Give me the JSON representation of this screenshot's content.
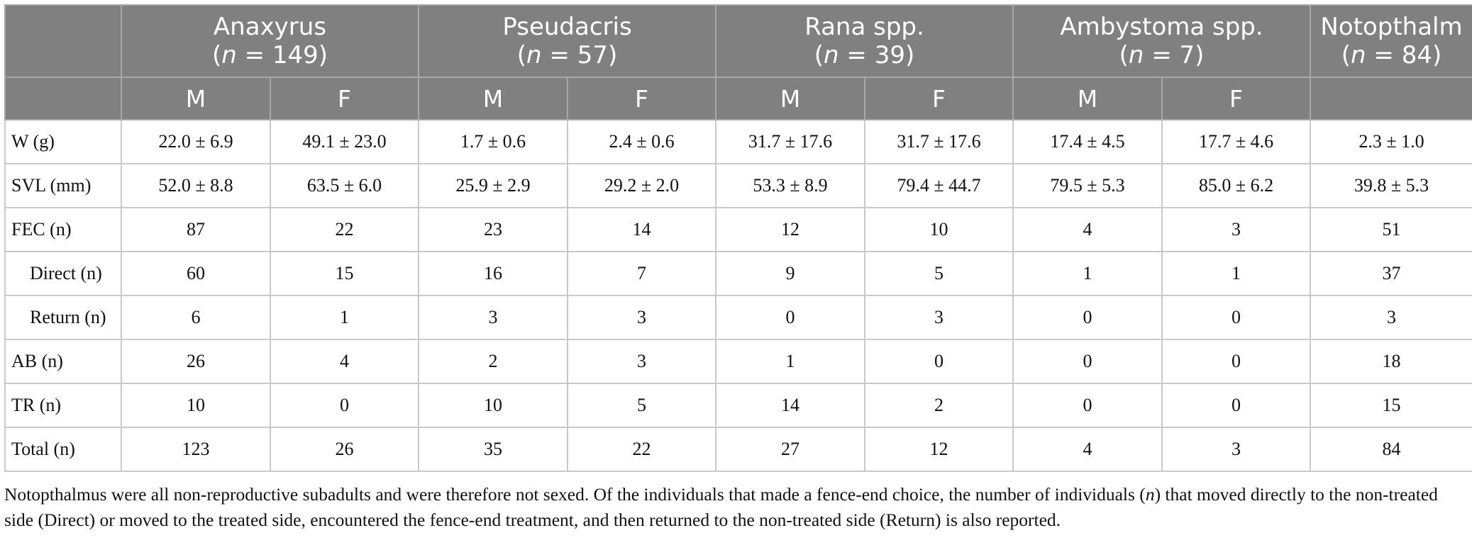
{
  "table": {
    "groups": [
      {
        "name": "Anaxyrus",
        "n_label": "n",
        "n_value": " = 149"
      },
      {
        "name": "Pseudacris",
        "n_label": "n",
        "n_value": " = 57"
      },
      {
        "name": "Rana spp.",
        "n_label": "n",
        "n_value": " = 39"
      },
      {
        "name": "Ambystoma spp.",
        "n_label": "n",
        "n_value": " = 7"
      },
      {
        "name": "Notopthalm",
        "n_label": "n",
        "n_value": " = 84"
      }
    ],
    "sex_headers": [
      "M",
      "F",
      "M",
      "F",
      "M",
      "F",
      "M",
      "F",
      ""
    ],
    "rows": [
      {
        "label": "W (g)",
        "cells": [
          "22.0 ± 6.9",
          "49.1 ± 23.0",
          "1.7 ± 0.6",
          "2.4 ± 0.6",
          "31.7 ± 17.6",
          "31.7 ± 17.6",
          "17.4 ± 4.5",
          "17.7 ± 4.6",
          "2.3 ± 1.0"
        ]
      },
      {
        "label": "SVL (mm)",
        "cells": [
          "52.0 ± 8.8",
          "63.5 ± 6.0",
          "25.9 ± 2.9",
          "29.2 ± 2.0",
          "53.3 ± 8.9",
          "79.4 ± 44.7",
          "79.5 ± 5.3",
          "85.0 ± 6.2",
          "39.8 ± 5.3"
        ]
      },
      {
        "label": "FEC (n)",
        "cells": [
          "87",
          "22",
          "23",
          "14",
          "12",
          "10",
          "4",
          "3",
          "51"
        ]
      },
      {
        "label": "Direct (n)",
        "cells": [
          "60",
          "15",
          "16",
          "7",
          "9",
          "5",
          "1",
          "1",
          "37"
        ]
      },
      {
        "label": "Return (n)",
        "cells": [
          "6",
          "1",
          "3",
          "3",
          "0",
          "3",
          "0",
          "0",
          "3"
        ]
      },
      {
        "label": "AB (n)",
        "cells": [
          "26",
          "4",
          "2",
          "3",
          "1",
          "0",
          "0",
          "0",
          "18"
        ]
      },
      {
        "label": "TR (n)",
        "cells": [
          "10",
          "0",
          "10",
          "5",
          "14",
          "2",
          "0",
          "0",
          "15"
        ]
      },
      {
        "label": "Total (n)",
        "cells": [
          "123",
          "26",
          "35",
          "22",
          "27",
          "12",
          "4",
          "3",
          "84"
        ]
      }
    ]
  },
  "footnote": {
    "part1": "Notopthalmus were all non-reproductive subadults and were therefore not sexed. Of the individuals that made a fence-end choice, the number of individuals (",
    "n": "n",
    "part2": ") that moved directly to the non-treated side (Direct) or moved to the treated side, encountered the fence-end treatment, and then returned to the non-treated side (Return) is also reported."
  }
}
